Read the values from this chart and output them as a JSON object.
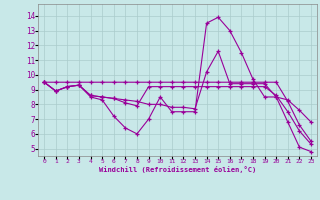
{
  "bg_color": "#c8e8e8",
  "line_color": "#990099",
  "grid_color": "#aacccc",
  "xlabel": "Windchill (Refroidissement éolien,°C)",
  "ylim": [
    4.5,
    14.8
  ],
  "xlim": [
    -0.5,
    23.5
  ],
  "series": [
    [
      9.5,
      8.9,
      9.2,
      9.3,
      8.5,
      8.3,
      7.2,
      6.4,
      6.0,
      7.0,
      8.5,
      7.5,
      7.5,
      7.5,
      13.5,
      13.9,
      13.0,
      11.5,
      9.7,
      8.5,
      8.5,
      6.8,
      5.1,
      4.8
    ],
    [
      9.5,
      8.9,
      9.2,
      9.3,
      8.6,
      8.5,
      8.4,
      8.3,
      8.2,
      8.0,
      8.0,
      7.8,
      7.8,
      7.7,
      10.2,
      11.6,
      9.4,
      9.4,
      9.4,
      9.4,
      8.5,
      8.3,
      7.6,
      6.8
    ],
    [
      9.5,
      8.9,
      9.2,
      9.3,
      8.6,
      8.5,
      8.4,
      8.1,
      7.9,
      9.2,
      9.2,
      9.2,
      9.2,
      9.2,
      9.2,
      9.2,
      9.2,
      9.2,
      9.2,
      9.2,
      8.6,
      7.5,
      6.2,
      5.3
    ],
    [
      9.5,
      9.5,
      9.5,
      9.5,
      9.5,
      9.5,
      9.5,
      9.5,
      9.5,
      9.5,
      9.5,
      9.5,
      9.5,
      9.5,
      9.5,
      9.5,
      9.5,
      9.5,
      9.5,
      9.5,
      9.5,
      8.2,
      6.6,
      5.5
    ]
  ]
}
